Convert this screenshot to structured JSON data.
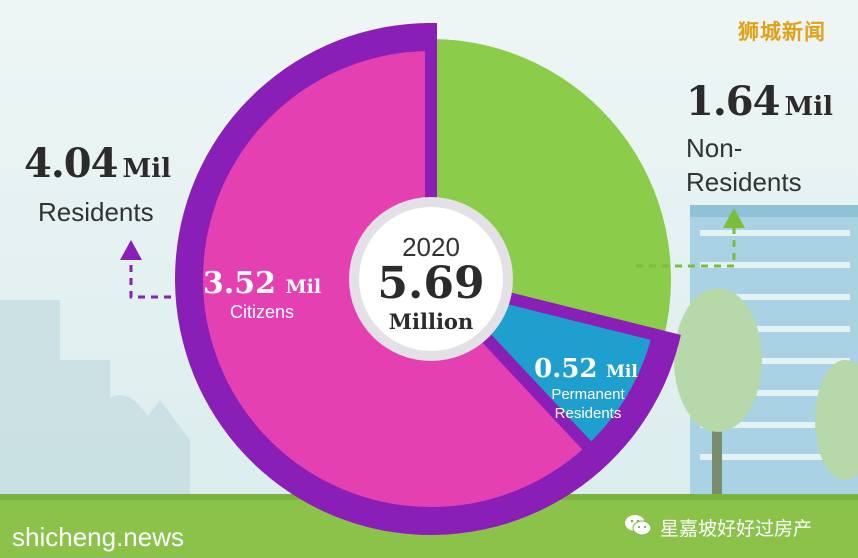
{
  "watermarks": {
    "top_right": "狮城新闻",
    "bottom_left": "shicheng.news",
    "account": "星嘉坡好好过房产",
    "account_icon": "wechat-icon"
  },
  "center": {
    "year": "2020",
    "total": "5.69",
    "unit": "Million"
  },
  "residents": {
    "value": "4.04",
    "unit": "Mil",
    "label": "Residents"
  },
  "non_residents": {
    "value": "1.64",
    "unit": "Mil",
    "label_line1": "Non-",
    "label_line2": "Residents"
  },
  "colors": {
    "citizens": "#e540b1",
    "permanent": "#1e9fce",
    "non_residents": "#8bcc4a",
    "residents_ring": "#8a1fb8",
    "arrow_purple": "#8a1fb8",
    "arrow_green": "#7bbd3c"
  },
  "chart_data": {
    "type": "pie",
    "title": "2020 5.69 Million",
    "unit": "Mil",
    "categories": [
      "Citizens",
      "Permanent Residents",
      "Non-Residents"
    ],
    "values": [
      3.52,
      0.52,
      1.64
    ],
    "slice_labels": [
      {
        "value": "3.52",
        "unit": "Mil",
        "line1": "Citizens",
        "line2": ""
      },
      {
        "value": "0.52",
        "unit": "Mil",
        "line1": "Permanent",
        "line2": "Residents"
      },
      {
        "value": "1.64",
        "unit": "Mil",
        "line1": "Non-Residents",
        "line2": ""
      }
    ],
    "groups": [
      {
        "name": "Residents",
        "value": 4.04,
        "members": [
          "Citizens",
          "Permanent Residents"
        ]
      },
      {
        "name": "Non-Residents",
        "value": 1.64,
        "members": [
          "Non-Residents"
        ]
      }
    ],
    "total": 5.69,
    "start_angle": "top, clockwise: Non-Residents, Permanent Residents, Citizens"
  }
}
